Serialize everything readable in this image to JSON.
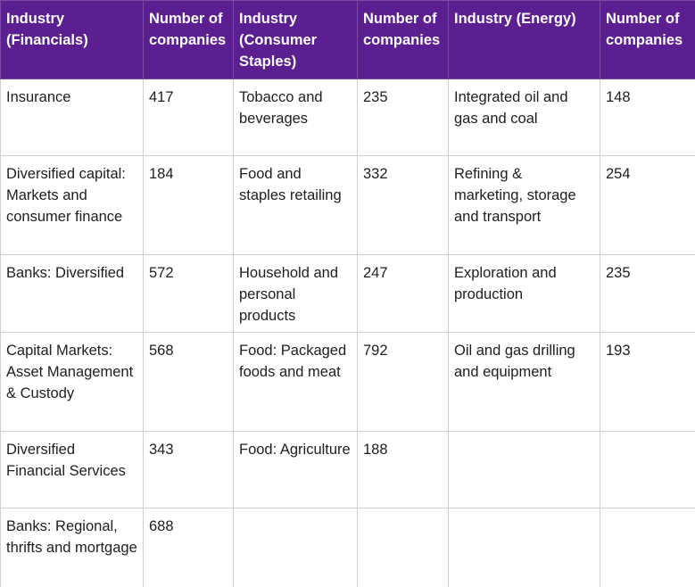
{
  "headers": [
    "Industry (Financials)",
    "Number of companies",
    "Industry (Consumer Staples)",
    "Number of companies",
    "Industry (Energy)",
    "Number of companies"
  ],
  "rows": [
    [
      "Insurance",
      "417",
      "Tobacco and beverages",
      "235",
      "Integrated oil and gas and coal",
      "148"
    ],
    [
      "Diversified capital: Markets and consumer finance",
      "184",
      "Food and staples retailing",
      "332",
      "Refining & marketing, storage and transport",
      "254"
    ],
    [
      "Banks: Diversified",
      "572",
      "Household and personal products",
      "247",
      "Exploration and production",
      "235"
    ],
    [
      "Capital Markets: Asset Management & Custody",
      "568",
      "Food: Packaged foods and meat",
      "792",
      "Oil and gas drilling and equipment",
      "193"
    ],
    [
      "Diversified Financial Services",
      "343",
      "Food: Agriculture",
      "188",
      "",
      ""
    ],
    [
      "Banks: Regional, thrifts and mortgage",
      "688",
      "",
      "",
      "",
      ""
    ]
  ]
}
